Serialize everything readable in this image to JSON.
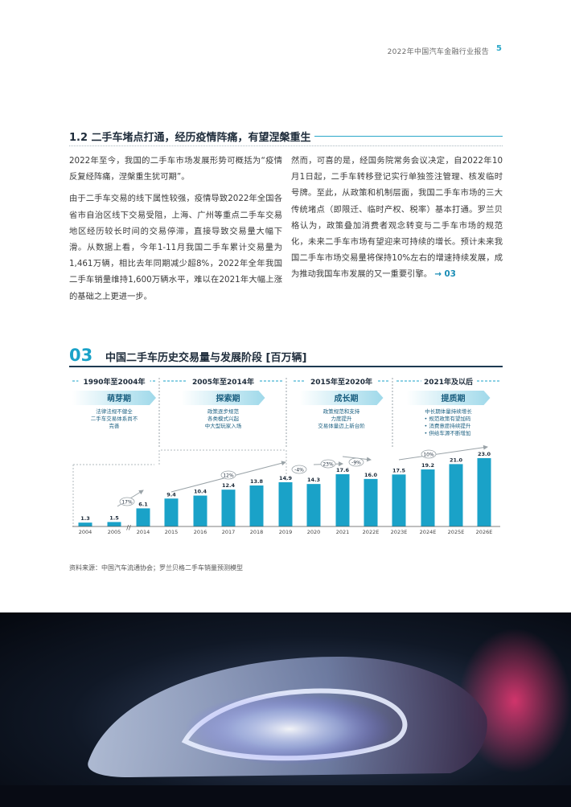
{
  "header": {
    "report_title": "2022年中国汽车金融行业报告",
    "page_number": "5"
  },
  "section": {
    "title": "1.2 二手车堵点打通，经历疫情阵痛，有望涅槃重生"
  },
  "left_column": {
    "p1": "2022年至今，我国的二手车市场发展形势可概括为“疫情反复经阵痛，涅槃重生犹可期”。",
    "p2": "由于二手车交易的线下属性较强，疫情导致2022年全国各省市自治区线下交易受阻，上海、广州等重点二手车交易地区经历较长时间的交易停滞，直接导致交易量大幅下滑。从数据上看，今年1-11月我国二手车累计交易量为1,461万辆，相比去年同期减少超8%，2022年全年我国二手车销量维持1,600万辆水平，难以在2021年大幅上涨的基础之上更进一步。"
  },
  "right_column": {
    "p1": "然而，可喜的是，经国务院常务会议决定，自2022年10月1日起，二手车转移登记实行单独签注管理、核发临时号牌。至此，从政策和机制层面，我国二手车市场的三大传统堵点（即限迁、临时产权、税率）基本打通。罗兰贝格认为，政策叠加消费者观念转变与二手车市场的规范化，未来二手车市场有望迎来可持续的增长。预计未来我国二手车市场交易量将保持10%左右的增速持续发展，成为推动我国车市发展的又一重要引擎。",
    "ref": "→ 03"
  },
  "figure": {
    "number": "03",
    "title": "中国二手车历史交易量与发展阶段 [百万辆]"
  },
  "chart_data": {
    "type": "bar",
    "title": "中国二手车历史交易量与发展阶段 [百万辆]",
    "categories": [
      "2004",
      "2005",
      "2014",
      "2015",
      "2016",
      "2017",
      "2018",
      "2019",
      "2020",
      "2021",
      "2022E",
      "2023E",
      "2024E",
      "2025E",
      "2026E"
    ],
    "values": [
      1.3,
      1.5,
      6.1,
      9.4,
      10.4,
      12.4,
      13.8,
      14.9,
      14.3,
      17.6,
      16.0,
      17.5,
      19.2,
      21.0,
      23.0
    ],
    "value_labels": [
      "1.3",
      "1.5",
      "6.1",
      "9.4",
      "10.4",
      "12.4",
      "13.8",
      "14.9",
      "14.3",
      "17.6",
      "16.0",
      "17.5",
      "19.2",
      "21.0",
      "23.0"
    ],
    "axis_break_label": "//",
    "bar_color": "#1aa2c8",
    "phases": [
      {
        "period": "1990年至2004年",
        "name": "萌芽期",
        "desc": [
          "法律法规不健全",
          "二手车交易体系尚不",
          "完善"
        ]
      },
      {
        "period": "2005年至2014年",
        "name": "探索期",
        "desc": [
          "政策逐步规范",
          "各类模式兴起",
          "中大型玩家入场"
        ]
      },
      {
        "period": "2015年至2020年",
        "name": "成长期",
        "desc": [
          "政策规范和支持",
          "力度提升",
          "交易体量迈上新台阶"
        ]
      },
      {
        "period": "2021年及以后",
        "name": "提质期",
        "desc": [
          "中长期体量持续增长",
          "• 规范政策有望加码",
          "• 消费意愿持续提升",
          "• 供给车源不断增加"
        ]
      }
    ],
    "growth_annotations": [
      "17%",
      "12%",
      "-4%",
      "23%",
      "-9%",
      "10%"
    ]
  },
  "source": "资料来源：中国汽车流通协会；罗兰贝格二手车销量预测模型"
}
